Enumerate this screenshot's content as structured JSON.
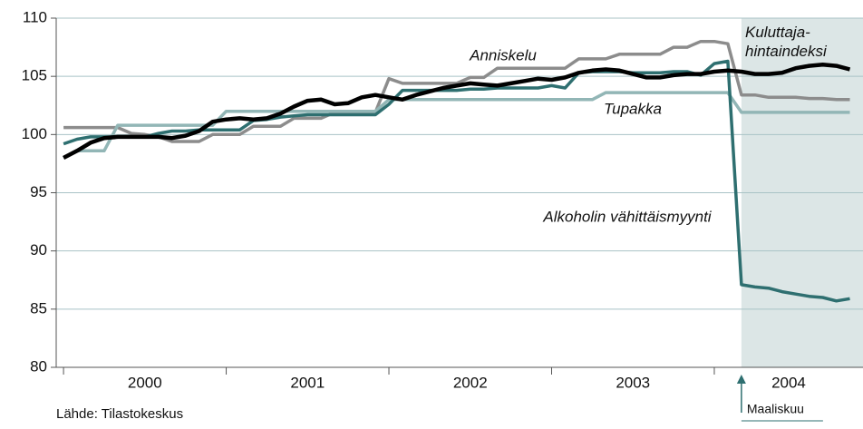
{
  "chart_data": {
    "type": "line",
    "source": "Lähde: Tilastokeskus",
    "x": [
      2000,
      2000.0833,
      2000.1667,
      2000.25,
      2000.3333,
      2000.4167,
      2000.5,
      2000.5833,
      2000.6667,
      2000.75,
      2000.8333,
      2000.9167,
      2001,
      2001.0833,
      2001.1667,
      2001.25,
      2001.3333,
      2001.4167,
      2001.5,
      2001.5833,
      2001.6667,
      2001.75,
      2001.8333,
      2001.9167,
      2002,
      2002.0833,
      2002.1667,
      2002.25,
      2002.3333,
      2002.4167,
      2002.5,
      2002.5833,
      2002.6667,
      2002.75,
      2002.8333,
      2002.9167,
      2003,
      2003.0833,
      2003.1667,
      2003.25,
      2003.3333,
      2003.4167,
      2003.5,
      2003.5833,
      2003.6667,
      2003.75,
      2003.8333,
      2003.9167,
      2004,
      2004.0833,
      2004.1667,
      2004.25,
      2004.3333,
      2004.4167,
      2004.5,
      2004.5833,
      2004.6667,
      2004.75,
      2004.8333
    ],
    "series": [
      {
        "name": "Anniskelu",
        "color": "#8c8c8c",
        "width": 3.5,
        "values": [
          100.6,
          100.6,
          100.6,
          100.6,
          100.6,
          100.1,
          100.0,
          99.8,
          99.4,
          99.4,
          99.4,
          100.0,
          100.0,
          100.0,
          100.7,
          100.7,
          100.7,
          101.4,
          101.4,
          101.4,
          101.9,
          101.9,
          101.9,
          101.9,
          104.8,
          104.4,
          104.4,
          104.4,
          104.4,
          104.4,
          104.9,
          104.9,
          105.7,
          105.7,
          105.7,
          105.7,
          105.7,
          105.7,
          106.5,
          106.5,
          106.5,
          106.9,
          106.9,
          106.9,
          106.9,
          107.5,
          107.5,
          108.0,
          108.0,
          107.8,
          103.4,
          103.4,
          103.2,
          103.2,
          103.2,
          103.1,
          103.1,
          103.0,
          103.0
        ]
      },
      {
        "name": "Tupakka",
        "color": "#92b6b6",
        "width": 3.5,
        "values": [
          98.0,
          98.6,
          98.6,
          98.6,
          100.8,
          100.8,
          100.8,
          100.8,
          100.8,
          100.8,
          100.8,
          100.8,
          102.0,
          102.0,
          102.0,
          102.0,
          102.0,
          102.0,
          102.0,
          102.0,
          102.0,
          102.0,
          102.0,
          102.0,
          103.0,
          103.0,
          103.0,
          103.0,
          103.0,
          103.0,
          103.0,
          103.0,
          103.0,
          103.0,
          103.0,
          103.0,
          103.0,
          103.0,
          103.0,
          103.0,
          103.6,
          103.6,
          103.6,
          103.6,
          103.6,
          103.6,
          103.6,
          103.6,
          103.6,
          103.6,
          101.9,
          101.9,
          101.9,
          101.9,
          101.9,
          101.9,
          101.9,
          101.9,
          101.9
        ]
      },
      {
        "name": "Alkoholin vähittäismyynti",
        "color": "#2e6f70",
        "width": 3.5,
        "values": [
          99.2,
          99.6,
          99.8,
          99.8,
          99.8,
          99.8,
          99.8,
          100.1,
          100.3,
          100.3,
          100.4,
          100.4,
          100.4,
          100.4,
          101.2,
          101.3,
          101.5,
          101.6,
          101.7,
          101.7,
          101.7,
          101.7,
          101.7,
          101.7,
          102.6,
          103.8,
          103.8,
          103.8,
          103.8,
          103.8,
          103.9,
          103.9,
          104.0,
          104.0,
          104.0,
          104.0,
          104.2,
          104.0,
          105.3,
          105.4,
          105.4,
          105.4,
          105.3,
          105.3,
          105.3,
          105.4,
          105.4,
          105.1,
          106.1,
          106.3,
          87.1,
          86.9,
          86.8,
          86.5,
          86.3,
          86.1,
          86.0,
          85.7,
          85.9
        ]
      },
      {
        "name": "Kuluttaja-hintaindeksi",
        "color": "#000000",
        "width": 4.5,
        "values": [
          98.0,
          98.6,
          99.3,
          99.7,
          99.8,
          99.8,
          99.8,
          99.8,
          99.7,
          99.9,
          100.3,
          101.1,
          101.3,
          101.4,
          101.3,
          101.4,
          101.8,
          102.4,
          102.9,
          103.0,
          102.6,
          102.7,
          103.2,
          103.4,
          103.2,
          103.0,
          103.4,
          103.7,
          104.0,
          104.2,
          104.4,
          104.3,
          104.2,
          104.4,
          104.6,
          104.8,
          104.7,
          104.9,
          105.3,
          105.5,
          105.6,
          105.5,
          105.2,
          104.9,
          104.9,
          105.1,
          105.2,
          105.2,
          105.4,
          105.5,
          105.4,
          105.2,
          105.2,
          105.3,
          105.7,
          105.9,
          106.0,
          105.9,
          105.6
        ]
      }
    ],
    "highlight": {
      "from": 2004.1667,
      "label": "Maaliskuu",
      "color": "#dce6e6"
    },
    "xlim": [
      1999.955,
      2004.914
    ],
    "xticks": [
      2000,
      2001,
      2002,
      2003,
      2004
    ],
    "ylim": [
      80,
      110
    ],
    "yticks": [
      80,
      85,
      90,
      95,
      100,
      105,
      110
    ],
    "grid": true
  }
}
